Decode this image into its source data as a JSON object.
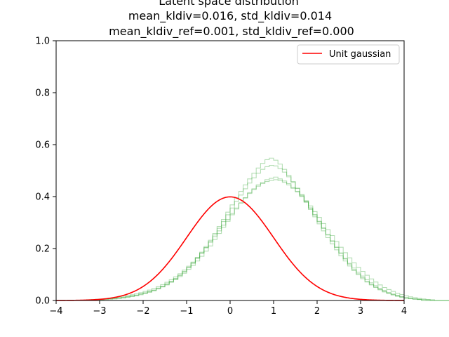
{
  "chart_data": {
    "type": "line",
    "title": "Latent space distribution",
    "subtitle_lines": [
      "mean_kldiv=0.016, std_kldiv=0.014",
      "mean_kldiv_ref=0.001, std_kldiv_ref=0.000"
    ],
    "xlabel": "",
    "ylabel": "",
    "xlim": [
      -4,
      4
    ],
    "ylim": [
      0,
      1.0
    ],
    "x_ticks": [
      "−4",
      "−3",
      "−2",
      "−1",
      "0",
      "1",
      "2",
      "3",
      "4"
    ],
    "y_ticks": [
      "0.0",
      "0.2",
      "0.4",
      "0.6",
      "0.8",
      "1.0"
    ],
    "grid": false,
    "legend": {
      "placement": "top-right",
      "entries": [
        {
          "label": "Unit gaussian",
          "color": "#ff0000"
        }
      ]
    },
    "series": [
      {
        "name": "Unit gaussian",
        "kind": "line",
        "color": "#ff0000",
        "function": "standard_normal_pdf",
        "x_range": [
          -4,
          4
        ],
        "peak": 0.399
      }
    ],
    "histograms": {
      "kind": "step",
      "color": "#2ca02c",
      "alpha": 0.35,
      "bin_width": 0.1,
      "bin_start": -4.0,
      "samples": [
        {
          "values": [
            0,
            0,
            0,
            0,
            0,
            0,
            0,
            0,
            0.003,
            0.004,
            0.005,
            0.006,
            0.007,
            0.008,
            0.01,
            0.012,
            0.015,
            0.018,
            0.02,
            0.025,
            0.028,
            0.033,
            0.038,
            0.045,
            0.052,
            0.06,
            0.07,
            0.08,
            0.092,
            0.105,
            0.12,
            0.135,
            0.152,
            0.17,
            0.19,
            0.21,
            0.235,
            0.258,
            0.282,
            0.305,
            0.33,
            0.352,
            0.375,
            0.395,
            0.415,
            0.43,
            0.445,
            0.455,
            0.465,
            0.47,
            0.475,
            0.468,
            0.46,
            0.45,
            0.435,
            0.42,
            0.4,
            0.38,
            0.356,
            0.33,
            0.305,
            0.28,
            0.255,
            0.23,
            0.205,
            0.182,
            0.16,
            0.14,
            0.12,
            0.103,
            0.088,
            0.074,
            0.062,
            0.052,
            0.043,
            0.035,
            0.028,
            0.023,
            0.018,
            0.014,
            0.01,
            0.008,
            0.006,
            0.005,
            0.004,
            0.003,
            0,
            0,
            0,
            0,
            0
          ]
        },
        {
          "values": [
            0,
            0,
            0,
            0,
            0,
            0,
            0,
            0,
            0,
            0.003,
            0.004,
            0.005,
            0.006,
            0.008,
            0.009,
            0.011,
            0.014,
            0.017,
            0.021,
            0.025,
            0.03,
            0.035,
            0.04,
            0.048,
            0.055,
            0.064,
            0.074,
            0.085,
            0.098,
            0.112,
            0.128,
            0.145,
            0.165,
            0.186,
            0.208,
            0.232,
            0.258,
            0.285,
            0.312,
            0.34,
            0.368,
            0.395,
            0.42,
            0.445,
            0.468,
            0.49,
            0.51,
            0.528,
            0.542,
            0.548,
            0.54,
            0.525,
            0.505,
            0.482,
            0.458,
            0.432,
            0.405,
            0.378,
            0.35,
            0.322,
            0.295,
            0.268,
            0.242,
            0.218,
            0.195,
            0.172,
            0.152,
            0.133,
            0.115,
            0.099,
            0.084,
            0.071,
            0.06,
            0.05,
            0.041,
            0.033,
            0.027,
            0.021,
            0.016,
            0.012,
            0.009,
            0.007,
            0.005,
            0.004,
            0,
            0,
            0,
            0,
            0,
            0,
            0
          ]
        },
        {
          "values": [
            0,
            0,
            0,
            0,
            0,
            0,
            0,
            0.003,
            0.004,
            0.005,
            0.006,
            0.007,
            0.009,
            0.011,
            0.013,
            0.016,
            0.019,
            0.022,
            0.026,
            0.03,
            0.035,
            0.04,
            0.046,
            0.053,
            0.061,
            0.07,
            0.08,
            0.091,
            0.103,
            0.117,
            0.132,
            0.148,
            0.165,
            0.183,
            0.203,
            0.224,
            0.246,
            0.268,
            0.29,
            0.312,
            0.335,
            0.356,
            0.376,
            0.395,
            0.412,
            0.427,
            0.44,
            0.45,
            0.458,
            0.462,
            0.465,
            0.462,
            0.455,
            0.445,
            0.432,
            0.418,
            0.402,
            0.384,
            0.364,
            0.342,
            0.32,
            0.296,
            0.273,
            0.25,
            0.227,
            0.205,
            0.184,
            0.164,
            0.145,
            0.128,
            0.112,
            0.097,
            0.083,
            0.071,
            0.06,
            0.05,
            0.042,
            0.035,
            0.028,
            0.023,
            0.018,
            0.014,
            0.011,
            0.008,
            0.006,
            0.004,
            0.003,
            0,
            0,
            0,
            0
          ]
        },
        {
          "values": [
            0,
            0,
            0,
            0,
            0,
            0,
            0,
            0,
            0,
            0,
            0.003,
            0.004,
            0.005,
            0.006,
            0.008,
            0.01,
            0.012,
            0.015,
            0.018,
            0.022,
            0.027,
            0.032,
            0.038,
            0.045,
            0.053,
            0.062,
            0.072,
            0.083,
            0.096,
            0.11,
            0.126,
            0.143,
            0.162,
            0.182,
            0.204,
            0.228,
            0.252,
            0.278,
            0.304,
            0.33,
            0.356,
            0.382,
            0.406,
            0.43,
            0.452,
            0.472,
            0.49,
            0.505,
            0.515,
            0.52,
            0.518,
            0.508,
            0.494,
            0.476,
            0.455,
            0.432,
            0.408,
            0.382,
            0.356,
            0.33,
            0.303,
            0.277,
            0.252,
            0.228,
            0.205,
            0.183,
            0.162,
            0.143,
            0.125,
            0.109,
            0.094,
            0.08,
            0.068,
            0.057,
            0.047,
            0.039,
            0.031,
            0.025,
            0.02,
            0.015,
            0.011,
            0.008,
            0.006,
            0.004,
            0,
            0,
            0,
            0,
            0,
            0,
            0
          ]
        }
      ]
    }
  }
}
